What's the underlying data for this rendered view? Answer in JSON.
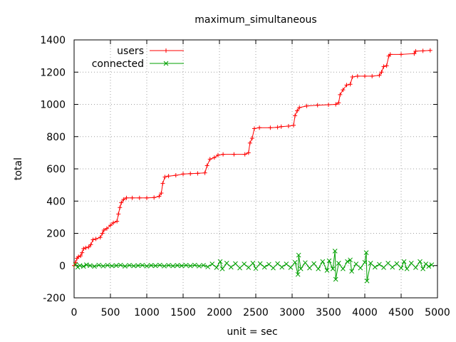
{
  "chart_data": {
    "type": "line",
    "title": "maximum_simultaneous",
    "xlabel": "unit = sec",
    "ylabel": "total",
    "xlim": [
      0,
      5000
    ],
    "ylim": [
      -200,
      1400
    ],
    "x_ticks": [
      0,
      500,
      1000,
      1500,
      2000,
      2500,
      3000,
      3500,
      4000,
      4500,
      5000
    ],
    "y_ticks": [
      -200,
      0,
      200,
      400,
      600,
      800,
      1000,
      1200,
      1400
    ],
    "grid": true,
    "legend_position": "top-left",
    "series": [
      {
        "name": "users",
        "color": "#ff0000",
        "marker": "plus",
        "points": [
          [
            0,
            0
          ],
          [
            20,
            20
          ],
          [
            40,
            45
          ],
          [
            60,
            55
          ],
          [
            90,
            60
          ],
          [
            110,
            80
          ],
          [
            130,
            105
          ],
          [
            160,
            110
          ],
          [
            200,
            115
          ],
          [
            230,
            130
          ],
          [
            260,
            160
          ],
          [
            300,
            165
          ],
          [
            360,
            175
          ],
          [
            390,
            200
          ],
          [
            410,
            220
          ],
          [
            450,
            230
          ],
          [
            500,
            250
          ],
          [
            540,
            265
          ],
          [
            590,
            275
          ],
          [
            610,
            320
          ],
          [
            630,
            360
          ],
          [
            650,
            390
          ],
          [
            680,
            410
          ],
          [
            720,
            420
          ],
          [
            800,
            420
          ],
          [
            900,
            420
          ],
          [
            1000,
            420
          ],
          [
            1100,
            422
          ],
          [
            1170,
            430
          ],
          [
            1200,
            450
          ],
          [
            1220,
            510
          ],
          [
            1250,
            550
          ],
          [
            1300,
            555
          ],
          [
            1400,
            560
          ],
          [
            1500,
            568
          ],
          [
            1600,
            570
          ],
          [
            1700,
            572
          ],
          [
            1800,
            575
          ],
          [
            1830,
            620
          ],
          [
            1870,
            660
          ],
          [
            1930,
            670
          ],
          [
            1980,
            685
          ],
          [
            2050,
            690
          ],
          [
            2200,
            690
          ],
          [
            2350,
            690
          ],
          [
            2400,
            700
          ],
          [
            2420,
            760
          ],
          [
            2450,
            790
          ],
          [
            2480,
            850
          ],
          [
            2550,
            855
          ],
          [
            2700,
            855
          ],
          [
            2800,
            858
          ],
          [
            2850,
            862
          ],
          [
            2950,
            865
          ],
          [
            3020,
            870
          ],
          [
            3040,
            930
          ],
          [
            3070,
            960
          ],
          [
            3100,
            980
          ],
          [
            3200,
            990
          ],
          [
            3350,
            995
          ],
          [
            3500,
            998
          ],
          [
            3600,
            1000
          ],
          [
            3640,
            1010
          ],
          [
            3660,
            1060
          ],
          [
            3700,
            1090
          ],
          [
            3750,
            1120
          ],
          [
            3800,
            1125
          ],
          [
            3830,
            1170
          ],
          [
            3900,
            1175
          ],
          [
            4000,
            1175
          ],
          [
            4100,
            1175
          ],
          [
            4200,
            1180
          ],
          [
            4230,
            1200
          ],
          [
            4260,
            1235
          ],
          [
            4300,
            1240
          ],
          [
            4330,
            1300
          ],
          [
            4350,
            1310
          ],
          [
            4500,
            1310
          ],
          [
            4680,
            1315
          ],
          [
            4700,
            1330
          ],
          [
            4800,
            1332
          ],
          [
            4900,
            1335
          ]
        ]
      },
      {
        "name": "connected",
        "color": "#00a000",
        "marker": "cross",
        "points": [
          [
            20,
            5
          ],
          [
            50,
            -10
          ],
          [
            80,
            0
          ],
          [
            130,
            -5
          ],
          [
            170,
            5
          ],
          [
            220,
            0
          ],
          [
            280,
            -5
          ],
          [
            340,
            3
          ],
          [
            400,
            -3
          ],
          [
            460,
            2
          ],
          [
            520,
            -2
          ],
          [
            580,
            0
          ],
          [
            640,
            3
          ],
          [
            700,
            -4
          ],
          [
            760,
            2
          ],
          [
            820,
            -2
          ],
          [
            880,
            0
          ],
          [
            940,
            2
          ],
          [
            1000,
            -3
          ],
          [
            1060,
            1
          ],
          [
            1120,
            -1
          ],
          [
            1180,
            3
          ],
          [
            1240,
            -3
          ],
          [
            1300,
            2
          ],
          [
            1360,
            -2
          ],
          [
            1420,
            1
          ],
          [
            1480,
            -1
          ],
          [
            1540,
            2
          ],
          [
            1600,
            -2
          ],
          [
            1660,
            3
          ],
          [
            1720,
            -3
          ],
          [
            1780,
            2
          ],
          [
            1840,
            -8
          ],
          [
            1900,
            10
          ],
          [
            1960,
            -12
          ],
          [
            2010,
            25
          ],
          [
            2040,
            -20
          ],
          [
            2100,
            15
          ],
          [
            2160,
            -10
          ],
          [
            2220,
            12
          ],
          [
            2280,
            -15
          ],
          [
            2340,
            10
          ],
          [
            2400,
            -12
          ],
          [
            2460,
            15
          ],
          [
            2500,
            -18
          ],
          [
            2560,
            12
          ],
          [
            2620,
            -10
          ],
          [
            2680,
            8
          ],
          [
            2740,
            -15
          ],
          [
            2800,
            12
          ],
          [
            2860,
            -10
          ],
          [
            2920,
            10
          ],
          [
            2980,
            -12
          ],
          [
            3040,
            20
          ],
          [
            3080,
            -55
          ],
          [
            3090,
            65
          ],
          [
            3120,
            -20
          ],
          [
            3180,
            18
          ],
          [
            3240,
            -15
          ],
          [
            3300,
            12
          ],
          [
            3360,
            -20
          ],
          [
            3420,
            25
          ],
          [
            3480,
            -30
          ],
          [
            3510,
            30
          ],
          [
            3560,
            -20
          ],
          [
            3590,
            90
          ],
          [
            3600,
            -85
          ],
          [
            3640,
            15
          ],
          [
            3700,
            -20
          ],
          [
            3760,
            25
          ],
          [
            3800,
            35
          ],
          [
            3820,
            -35
          ],
          [
            3880,
            10
          ],
          [
            3940,
            -15
          ],
          [
            4000,
            20
          ],
          [
            4020,
            80
          ],
          [
            4030,
            -95
          ],
          [
            4080,
            15
          ],
          [
            4140,
            -10
          ],
          [
            4200,
            8
          ],
          [
            4260,
            -12
          ],
          [
            4320,
            15
          ],
          [
            4380,
            -10
          ],
          [
            4440,
            12
          ],
          [
            4500,
            -15
          ],
          [
            4540,
            25
          ],
          [
            4580,
            -20
          ],
          [
            4640,
            15
          ],
          [
            4700,
            -12
          ],
          [
            4760,
            25
          ],
          [
            4800,
            -20
          ],
          [
            4840,
            10
          ],
          [
            4880,
            -5
          ],
          [
            4920,
            5
          ]
        ]
      }
    ]
  }
}
